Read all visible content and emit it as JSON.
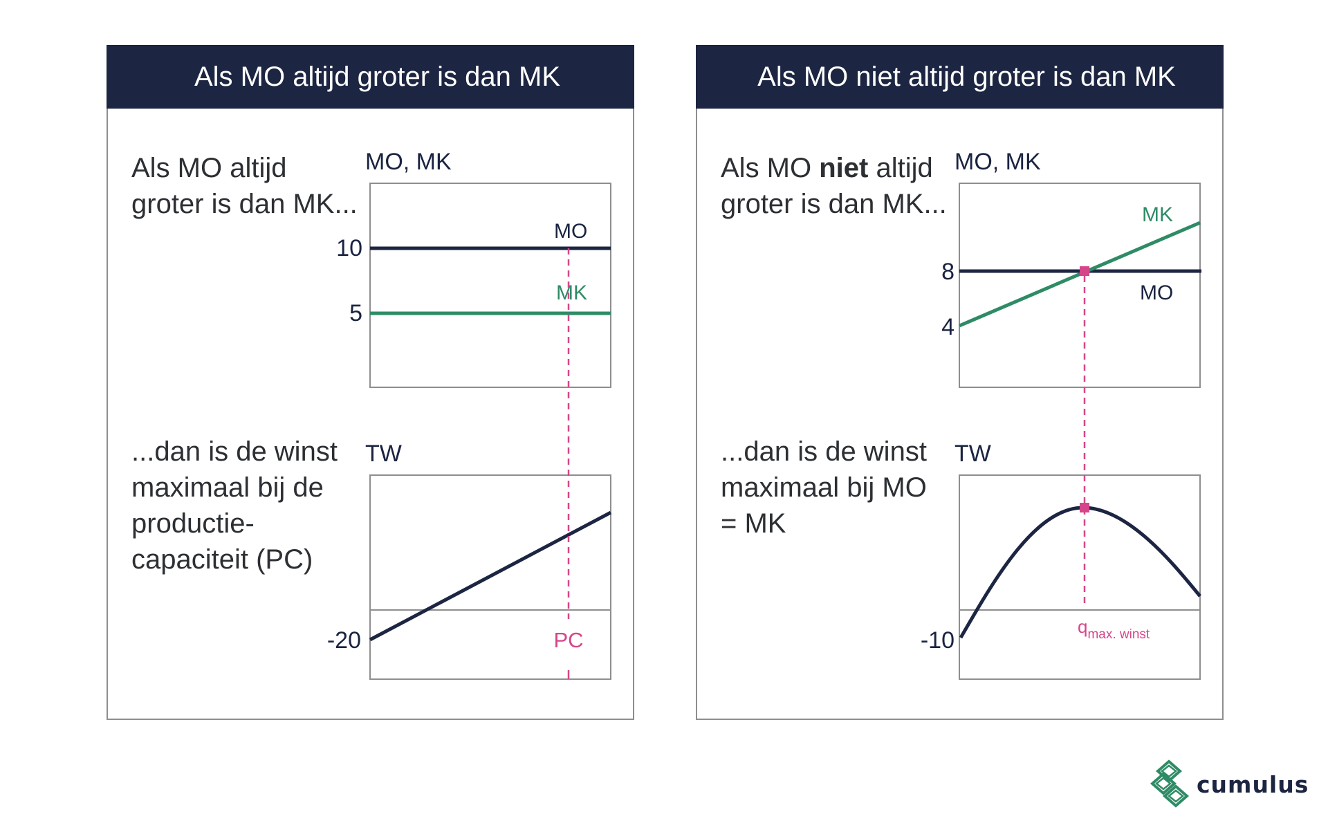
{
  "colors": {
    "header_bg": "#1c2541",
    "mo_line": "#1c2541",
    "mk_line": "#2e8b66",
    "guide": "#d6458a",
    "box": "#8e8e8e"
  },
  "left": {
    "title": "Als MO altijd groter is dan MK",
    "top_text": "Als MO altijd groter is dan MK...",
    "bottom_text": "...dan is de winst maximaal bij de productie-capaciteit (PC)",
    "top_axis": "MO, MK",
    "bottom_axis": "TW",
    "mo_label": "MO",
    "mk_label": "MK",
    "tick_mo": "10",
    "tick_mk": "5",
    "tick_tw": "-20",
    "pc_label": "PC"
  },
  "right": {
    "title": "Als MO niet altijd groter is dan MK",
    "top_text_pre": "Als MO ",
    "top_text_bold": "niet",
    "top_text_post": " altijd groter is dan MK...",
    "bottom_text": "...dan is de winst maximaal bij MO = MK",
    "top_axis": "MO, MK",
    "bottom_axis": "TW",
    "mo_label": "MO",
    "mk_label": "MK",
    "tick_mo": "8",
    "tick_mk": "4",
    "tick_tw": "-10",
    "q_label": "q",
    "q_sub": "max. winst"
  },
  "logo": {
    "text": "cumulus",
    "icon": "cumulus-logo-icon"
  }
}
